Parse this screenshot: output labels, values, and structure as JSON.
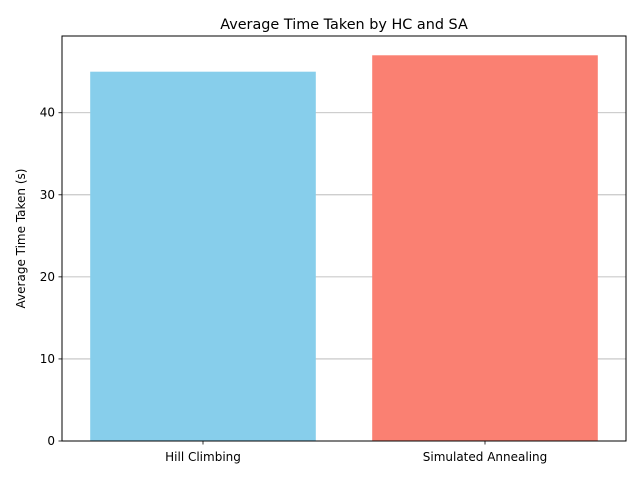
{
  "chart_data": {
    "type": "bar",
    "title": "Average Time Taken by HC and SA",
    "xlabel": "",
    "ylabel": "Average Time Taken (s)",
    "categories": [
      "Hill Climbing",
      "Simulated Annealing"
    ],
    "values": [
      45,
      47
    ],
    "bar_colors": [
      "#87CEEB",
      "#FA8072"
    ],
    "ylim": [
      0,
      49.35
    ],
    "yticks": [
      0,
      10,
      20,
      30,
      40
    ],
    "grid": "y-axis only",
    "grid_color": "#b0b0b0",
    "legend": "none"
  }
}
